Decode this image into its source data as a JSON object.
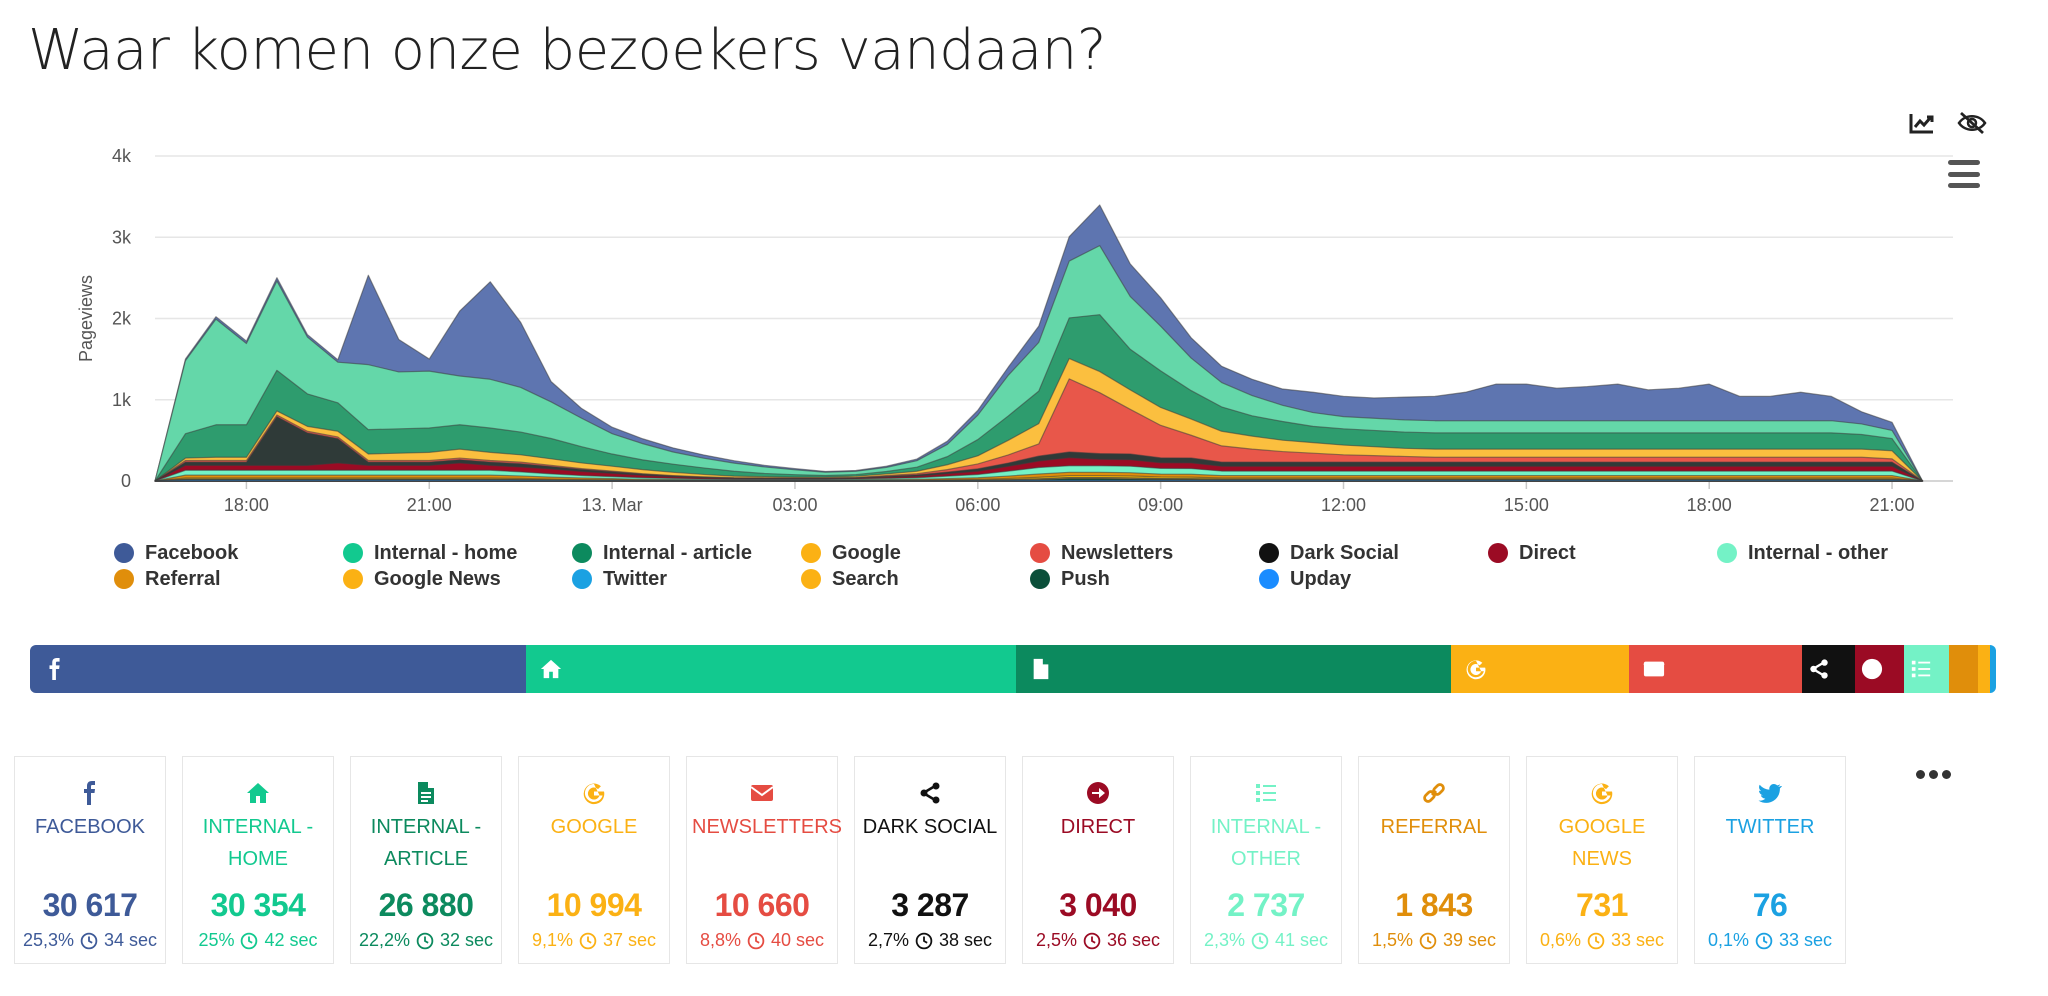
{
  "page": {
    "title": "Waar komen onze bezoekers vandaan?"
  },
  "chart_data": {
    "type": "area",
    "stacked": true,
    "ylabel": "Pageviews",
    "ylim": [
      0,
      4000
    ],
    "yticks": [
      "0",
      "1k",
      "2k",
      "3k",
      "4k"
    ],
    "xticks": [
      "18:00",
      "21:00",
      "13. Mar",
      "03:00",
      "06:00",
      "09:00",
      "12:00",
      "15:00",
      "18:00",
      "21:00"
    ],
    "grid": true,
    "legend_position": "bottom",
    "x_hours": [
      16.5,
      17,
      17.5,
      18,
      18.5,
      19,
      19.5,
      20,
      20.5,
      21,
      21.5,
      22,
      22.5,
      23,
      23.5,
      24,
      24.5,
      25,
      25.5,
      26,
      26.5,
      27,
      27.5,
      28,
      28.5,
      29,
      29.5,
      30,
      30.5,
      31,
      31.5,
      32,
      32.5,
      33,
      33.5,
      34,
      34.5,
      35,
      35.5,
      36,
      36.5,
      37,
      37.5,
      38,
      38.5,
      39,
      39.5,
      40,
      40.5,
      41,
      41.5,
      42,
      42.5,
      43,
      43.5,
      44,
      44.5,
      45,
      45.5
    ],
    "series": [
      {
        "name": "Upday",
        "color": "#1a8cff",
        "values": [
          0,
          10,
          10,
          10,
          10,
          10,
          10,
          10,
          10,
          10,
          10,
          10,
          8,
          6,
          4,
          3,
          2,
          2,
          1,
          1,
          1,
          1,
          1,
          1,
          1,
          1,
          2,
          3,
          5,
          8,
          10,
          10,
          10,
          10,
          10,
          8,
          8,
          8,
          8,
          8,
          8,
          8,
          8,
          8,
          8,
          8,
          8,
          8,
          8,
          8,
          8,
          8,
          8,
          8,
          8,
          8,
          8,
          8,
          0
        ]
      },
      {
        "name": "Push",
        "color": "#0b4f3a",
        "values": [
          0,
          5,
          5,
          5,
          5,
          5,
          5,
          5,
          5,
          5,
          5,
          5,
          5,
          3,
          2,
          2,
          1,
          1,
          1,
          1,
          1,
          1,
          1,
          1,
          1,
          1,
          2,
          3,
          5,
          8,
          20,
          20,
          15,
          10,
          8,
          6,
          6,
          6,
          6,
          6,
          6,
          6,
          6,
          6,
          6,
          6,
          6,
          6,
          6,
          6,
          6,
          6,
          6,
          6,
          6,
          6,
          6,
          6,
          0
        ]
      },
      {
        "name": "Search",
        "color": "#f6b21f",
        "values": [
          0,
          5,
          5,
          5,
          5,
          5,
          5,
          5,
          5,
          5,
          5,
          5,
          5,
          3,
          2,
          2,
          1,
          1,
          1,
          1,
          1,
          1,
          1,
          1,
          1,
          1,
          2,
          3,
          5,
          8,
          10,
          10,
          10,
          8,
          8,
          6,
          6,
          6,
          6,
          6,
          6,
          6,
          6,
          6,
          6,
          6,
          6,
          6,
          6,
          6,
          6,
          6,
          6,
          6,
          6,
          6,
          6,
          6,
          0
        ]
      },
      {
        "name": "Twitter",
        "color": "#1da1f2",
        "values": [
          0,
          2,
          2,
          2,
          2,
          2,
          2,
          2,
          2,
          2,
          2,
          2,
          2,
          1,
          1,
          1,
          1,
          1,
          1,
          1,
          1,
          1,
          1,
          1,
          1,
          1,
          1,
          1,
          1,
          2,
          2,
          2,
          2,
          2,
          2,
          2,
          2,
          2,
          2,
          2,
          2,
          2,
          2,
          2,
          2,
          2,
          2,
          2,
          2,
          2,
          2,
          2,
          2,
          2,
          2,
          2,
          2,
          2,
          0
        ]
      },
      {
        "name": "Google News",
        "color": "#f7b500",
        "values": [
          0,
          15,
          15,
          15,
          15,
          15,
          15,
          15,
          15,
          15,
          15,
          15,
          12,
          10,
          8,
          6,
          5,
          4,
          3,
          3,
          3,
          3,
          3,
          4,
          5,
          6,
          8,
          10,
          15,
          20,
          25,
          25,
          25,
          20,
          20,
          15,
          15,
          15,
          15,
          15,
          15,
          15,
          15,
          15,
          15,
          15,
          15,
          15,
          15,
          15,
          15,
          15,
          15,
          15,
          15,
          15,
          15,
          15,
          0
        ]
      },
      {
        "name": "Referral",
        "color": "#e08e0b",
        "values": [
          0,
          35,
          35,
          35,
          35,
          35,
          35,
          35,
          35,
          35,
          35,
          35,
          30,
          25,
          20,
          15,
          10,
          8,
          6,
          5,
          5,
          5,
          5,
          6,
          8,
          10,
          15,
          20,
          30,
          40,
          40,
          40,
          40,
          35,
          35,
          30,
          30,
          30,
          30,
          30,
          30,
          30,
          30,
          30,
          30,
          30,
          30,
          30,
          30,
          30,
          30,
          30,
          30,
          30,
          30,
          30,
          30,
          30,
          0
        ]
      },
      {
        "name": "Internal - other",
        "color": "#74f2c6",
        "values": [
          0,
          60,
          60,
          60,
          60,
          60,
          60,
          60,
          60,
          60,
          60,
          60,
          50,
          40,
          30,
          25,
          20,
          15,
          10,
          8,
          8,
          8,
          8,
          10,
          15,
          20,
          30,
          40,
          60,
          80,
          80,
          80,
          80,
          70,
          70,
          55,
          55,
          55,
          55,
          55,
          55,
          55,
          55,
          55,
          55,
          55,
          55,
          55,
          55,
          55,
          55,
          55,
          55,
          55,
          55,
          55,
          55,
          55,
          0
        ]
      },
      {
        "name": "Direct",
        "color": "#9b0b24",
        "values": [
          0,
          60,
          60,
          60,
          60,
          60,
          90,
          60,
          60,
          60,
          90,
          60,
          60,
          60,
          50,
          40,
          30,
          20,
          15,
          10,
          8,
          8,
          8,
          10,
          15,
          20,
          30,
          40,
          60,
          80,
          100,
          80,
          80,
          70,
          70,
          60,
          60,
          60,
          60,
          60,
          60,
          60,
          60,
          60,
          60,
          60,
          60,
          60,
          60,
          60,
          60,
          60,
          60,
          60,
          60,
          60,
          60,
          60,
          0
        ]
      },
      {
        "name": "Dark Social",
        "color": "#2f3a38",
        "values": [
          0,
          40,
          40,
          40,
          600,
          400,
          300,
          40,
          40,
          40,
          40,
          40,
          40,
          30,
          25,
          20,
          15,
          10,
          8,
          5,
          5,
          5,
          5,
          5,
          10,
          15,
          20,
          30,
          40,
          60,
          70,
          70,
          70,
          60,
          60,
          50,
          50,
          50,
          50,
          50,
          50,
          50,
          50,
          50,
          50,
          50,
          50,
          50,
          50,
          50,
          50,
          50,
          50,
          50,
          50,
          50,
          50,
          50,
          0
        ]
      },
      {
        "name": "Newsletters",
        "color": "#e8574a",
        "values": [
          0,
          20,
          20,
          20,
          20,
          20,
          20,
          20,
          20,
          20,
          20,
          20,
          20,
          15,
          10,
          8,
          5,
          5,
          5,
          5,
          5,
          5,
          5,
          5,
          10,
          15,
          30,
          60,
          100,
          150,
          900,
          750,
          550,
          400,
          280,
          200,
          160,
          130,
          110,
          90,
          80,
          70,
          60,
          60,
          60,
          60,
          60,
          60,
          60,
          60,
          60,
          60,
          60,
          60,
          60,
          60,
          60,
          40,
          0
        ]
      },
      {
        "name": "Google",
        "color": "#fbbf3f",
        "values": [
          0,
          30,
          40,
          40,
          50,
          60,
          70,
          80,
          90,
          100,
          110,
          100,
          90,
          80,
          70,
          60,
          50,
          40,
          30,
          20,
          15,
          10,
          10,
          15,
          20,
          30,
          60,
          100,
          180,
          250,
          250,
          260,
          240,
          220,
          200,
          180,
          160,
          140,
          130,
          120,
          110,
          100,
          100,
          100,
          100,
          100,
          100,
          100,
          100,
          100,
          100,
          100,
          100,
          100,
          100,
          100,
          100,
          100,
          0
        ]
      },
      {
        "name": "Internal - article",
        "color": "#2e9c6e",
        "values": [
          0,
          300,
          400,
          400,
          500,
          400,
          350,
          300,
          300,
          300,
          300,
          300,
          280,
          250,
          200,
          150,
          120,
          100,
          80,
          60,
          40,
          30,
          20,
          20,
          30,
          50,
          100,
          200,
          300,
          400,
          500,
          700,
          500,
          450,
          350,
          300,
          250,
          230,
          200,
          200,
          200,
          200,
          200,
          200,
          200,
          200,
          200,
          200,
          200,
          200,
          200,
          200,
          200,
          200,
          200,
          200,
          180,
          150,
          0
        ]
      },
      {
        "name": "Internal - home",
        "color": "#64d7a9",
        "values": [
          0,
          900,
          1300,
          1000,
          1100,
          700,
          500,
          800,
          700,
          700,
          600,
          600,
          550,
          450,
          350,
          250,
          200,
          150,
          120,
          100,
          80,
          60,
          40,
          40,
          50,
          80,
          150,
          300,
          500,
          600,
          700,
          850,
          650,
          550,
          400,
          300,
          250,
          200,
          170,
          150,
          150,
          150,
          150,
          150,
          150,
          150,
          150,
          150,
          150,
          150,
          150,
          150,
          150,
          150,
          150,
          150,
          130,
          100,
          0
        ]
      },
      {
        "name": "Facebook",
        "color": "#5e75b0",
        "values": [
          0,
          20,
          30,
          30,
          40,
          30,
          30,
          1100,
          400,
          150,
          800,
          1200,
          800,
          250,
          120,
          80,
          60,
          50,
          40,
          30,
          20,
          15,
          10,
          10,
          15,
          20,
          40,
          60,
          100,
          200,
          300,
          500,
          400,
          350,
          250,
          200,
          200,
          200,
          250,
          250,
          250,
          280,
          300,
          350,
          450,
          450,
          400,
          420,
          450,
          380,
          400,
          450,
          300,
          300,
          350,
          300,
          150,
          100,
          0
        ]
      }
    ]
  },
  "legend": [
    {
      "label": "Facebook",
      "color": "#3e5a98"
    },
    {
      "label": "Internal - home",
      "color": "#12c98f"
    },
    {
      "label": "Internal - article",
      "color": "#0c8a5e"
    },
    {
      "label": "Google",
      "color": "#fbb114"
    },
    {
      "label": "Newsletters",
      "color": "#e54c42"
    },
    {
      "label": "Dark Social",
      "color": "#111111"
    },
    {
      "label": "Direct",
      "color": "#9b0b24"
    },
    {
      "label": "Internal - other",
      "color": "#74f2c6"
    },
    {
      "label": "Referral",
      "color": "#e08e0b"
    },
    {
      "label": "Google News",
      "color": "#fbb114"
    },
    {
      "label": "Twitter",
      "color": "#1ba1e2"
    },
    {
      "label": "Search",
      "color": "#fbb114"
    },
    {
      "label": "Push",
      "color": "#0b4f3a"
    },
    {
      "label": "Upday",
      "color": "#1a8cff"
    }
  ],
  "share_bar": [
    {
      "name": "facebook",
      "icon": "facebook-icon",
      "share": 25.3,
      "color": "#3e5a98"
    },
    {
      "name": "internal-home",
      "icon": "home-icon",
      "share": 25.0,
      "color": "#12c98f"
    },
    {
      "name": "internal-article",
      "icon": "document-icon",
      "share": 22.2,
      "color": "#0c8a5e"
    },
    {
      "name": "google",
      "icon": "google-icon",
      "share": 9.1,
      "color": "#fbb114"
    },
    {
      "name": "newsletters",
      "icon": "envelope-icon",
      "share": 8.8,
      "color": "#e54c42"
    },
    {
      "name": "dark-social",
      "icon": "share-icon",
      "share": 2.7,
      "color": "#111111"
    },
    {
      "name": "direct",
      "icon": "arrow-circle-icon",
      "share": 2.5,
      "color": "#9b0b24"
    },
    {
      "name": "internal-other",
      "icon": "list-icon",
      "share": 2.3,
      "color": "#74f2c6"
    },
    {
      "name": "referral",
      "icon": "",
      "share": 1.5,
      "color": "#e08e0b"
    },
    {
      "name": "google-news",
      "icon": "",
      "share": 0.6,
      "color": "#fbb114"
    },
    {
      "name": "twitter",
      "icon": "",
      "share": 0.1,
      "color": "#1ba1e2"
    }
  ],
  "cards": [
    {
      "id": "facebook",
      "icon": "facebook-icon",
      "name": "FACEBOOK",
      "value": "30 617",
      "percent": "25,3%",
      "time": "34 sec",
      "color": "#3e5a98",
      "meta_color": "#3e5a98"
    },
    {
      "id": "internal-home",
      "icon": "home-icon",
      "name": "INTERNAL - HOME",
      "value": "30 354",
      "percent": "25%",
      "time": "42 sec",
      "color": "#12c98f",
      "meta_color": "#12c98f"
    },
    {
      "id": "internal-article",
      "icon": "document-icon",
      "name": "INTERNAL - ARTICLE",
      "value": "26 880",
      "percent": "22,2%",
      "time": "32 sec",
      "color": "#0c8a5e",
      "meta_color": "#0c8a5e"
    },
    {
      "id": "google",
      "icon": "google-icon",
      "name": "GOOGLE",
      "value": "10 994",
      "percent": "9,1%",
      "time": "37 sec",
      "color": "#fbb114",
      "meta_color": "#fbb114"
    },
    {
      "id": "newsletters",
      "icon": "envelope-icon",
      "name": "NEWSLETTERS",
      "value": "10 660",
      "percent": "8,8%",
      "time": "40 sec",
      "color": "#e54c42",
      "meta_color": "#e54c42"
    },
    {
      "id": "dark-social",
      "icon": "share-icon",
      "name": "DARK SOCIAL",
      "value": "3 287",
      "percent": "2,7%",
      "time": "38 sec",
      "color": "#111111",
      "meta_color": "#111111"
    },
    {
      "id": "direct",
      "icon": "arrow-circle-icon",
      "name": "DIRECT",
      "value": "3 040",
      "percent": "2,5%",
      "time": "36 sec",
      "color": "#9b0b24",
      "meta_color": "#9b0b24"
    },
    {
      "id": "internal-other",
      "icon": "list-icon",
      "name": "INTERNAL - OTHER",
      "value": "2 737",
      "percent": "2,3%",
      "time": "41 sec",
      "color": "#74f2c6",
      "meta_color": "#74f2c6"
    },
    {
      "id": "referral",
      "icon": "link-icon",
      "name": "REFERRAL",
      "value": "1 843",
      "percent": "1,5%",
      "time": "39 sec",
      "color": "#e08e0b",
      "meta_color": "#e08e0b"
    },
    {
      "id": "google-news",
      "icon": "google-icon",
      "name": "GOOGLE NEWS",
      "value": "731",
      "percent": "0,6%",
      "time": "33 sec",
      "color": "#fbb114",
      "meta_color": "#fbb114"
    },
    {
      "id": "twitter",
      "icon": "twitter-icon",
      "name": "TWITTER",
      "value": "76",
      "percent": "0,1%",
      "time": "33 sec",
      "color": "#1ba1e2",
      "meta_color": "#1ba1e2"
    }
  ],
  "toolbar": {
    "chart_icon": "line-chart-icon",
    "hide_icon": "eye-slash-icon",
    "menu_icon": "hamburger-icon",
    "more_icon": "ellipsis-icon"
  }
}
